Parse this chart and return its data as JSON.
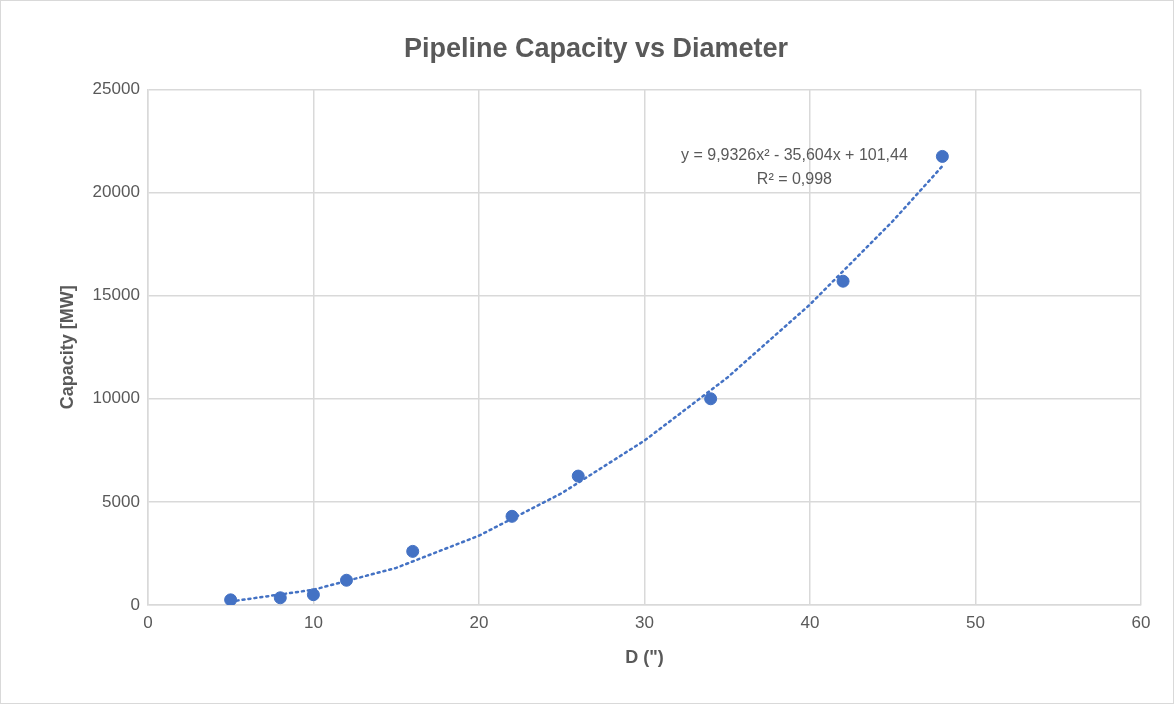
{
  "chart_data": {
    "type": "scatter",
    "title": "Pipeline Capacity vs Diameter",
    "xlabel": "D (\")",
    "ylabel": "Capacity [MW]",
    "xlim": [
      0,
      60
    ],
    "xticks": [
      0,
      10,
      20,
      30,
      40,
      50,
      60
    ],
    "ylim": [
      0,
      25000
    ],
    "yticks": [
      0,
      5000,
      10000,
      15000,
      20000,
      25000
    ],
    "grid": true,
    "legend": false,
    "annotations": [
      "y = 9,9326x² - 35,604x + 101,44",
      "R² = 0,998"
    ],
    "series": [
      {
        "color": "#4472c4",
        "marker": "circle",
        "x": [
          5,
          8,
          10,
          12,
          16,
          22,
          26,
          34,
          42,
          48
        ],
        "values": [
          250,
          350,
          500,
          1200,
          2600,
          4300,
          6250,
          10000,
          15700,
          21750
        ]
      },
      {
        "type": "line",
        "color": "#4472c4",
        "marker": "none",
        "line_style": "dotted",
        "x": [
          5,
          10,
          15,
          20,
          25,
          30,
          35,
          40,
          45,
          48
        ],
        "values": [
          170,
          740,
          1800,
          3360,
          5420,
          7970,
          11020,
          14570,
          18610,
          21280
        ]
      }
    ]
  }
}
